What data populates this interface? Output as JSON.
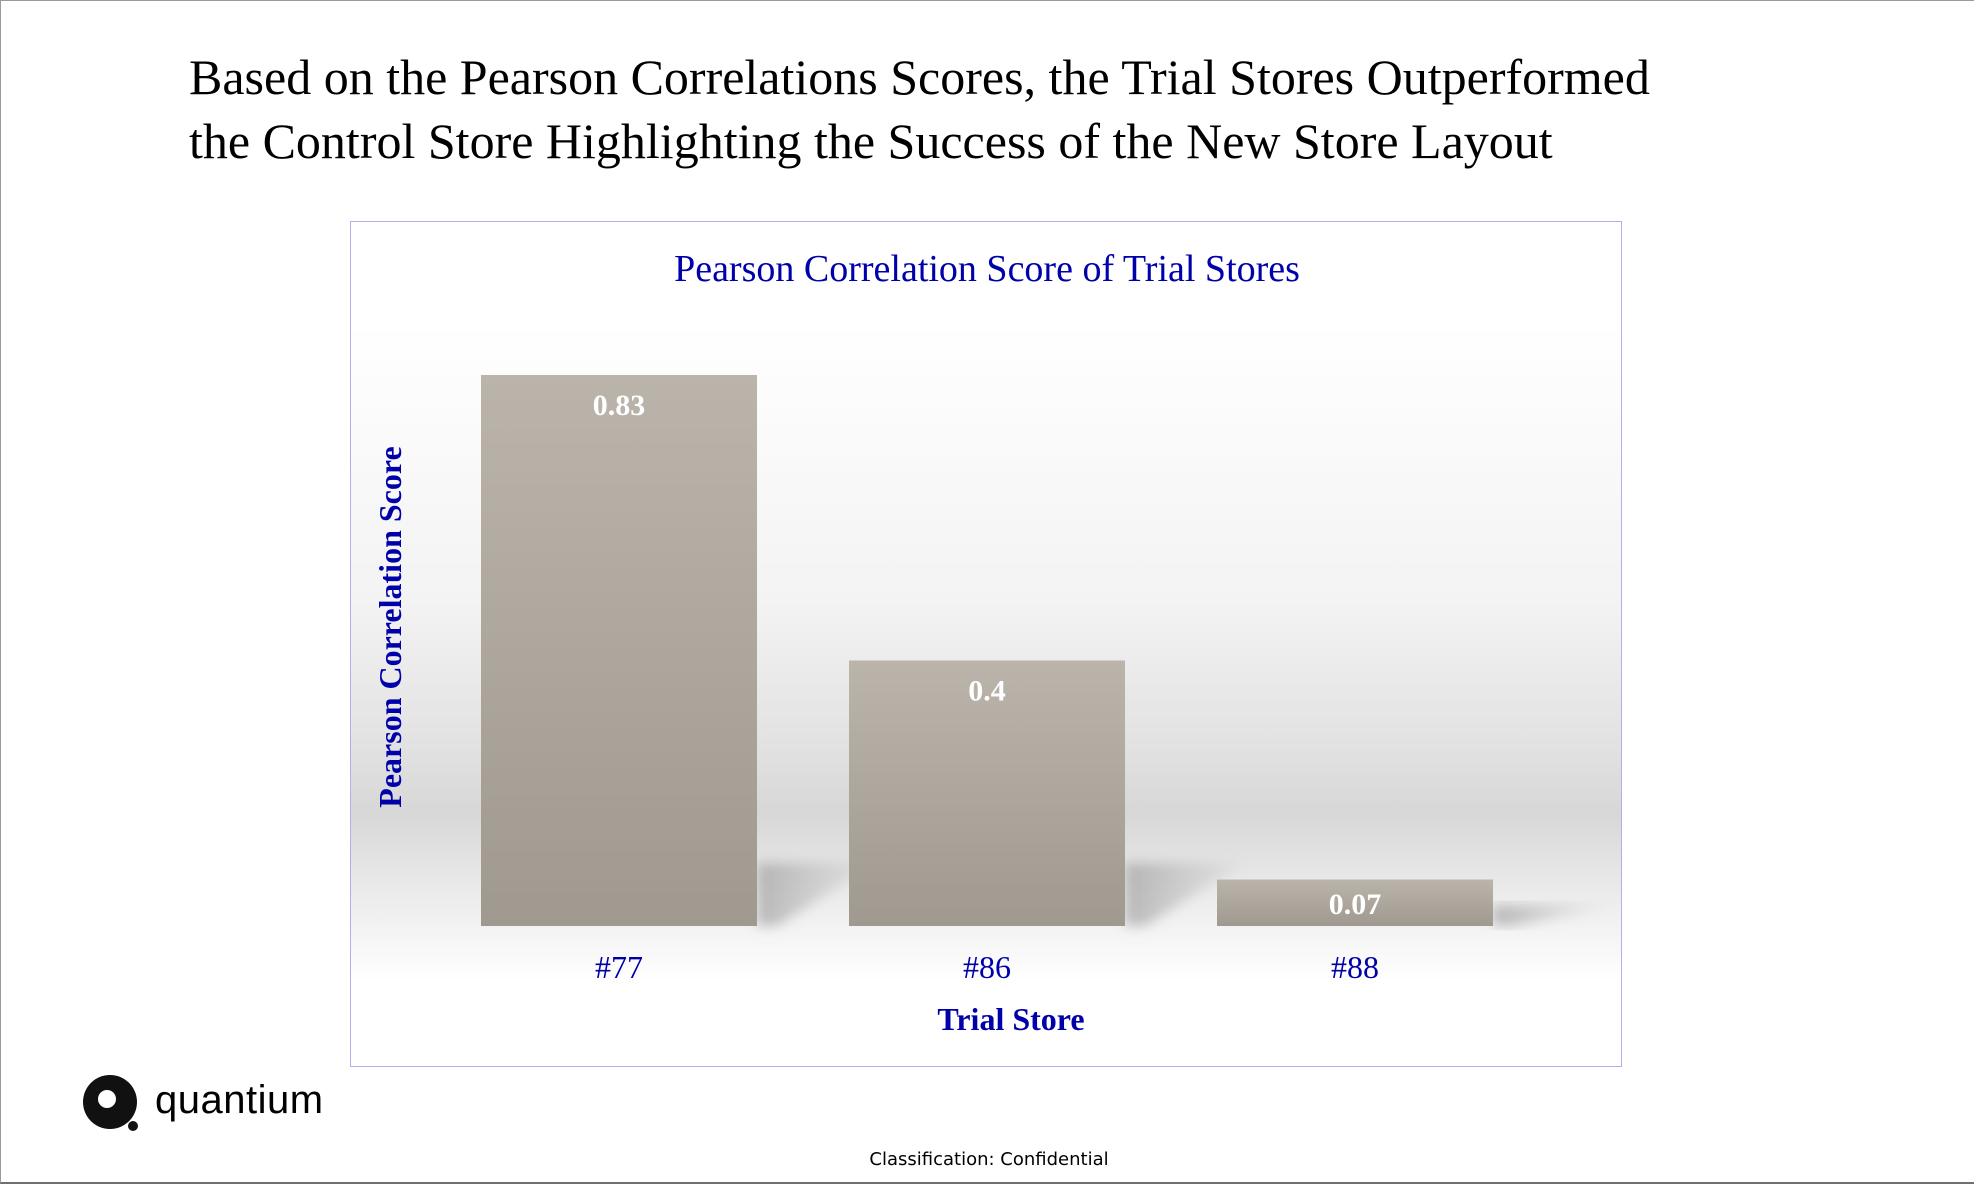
{
  "headline": {
    "line1": "Based on the Pearson Correlations Scores, the Trial Stores Outperformed",
    "line2": "the Control Store Highlighting the Success of the New Store Layout"
  },
  "chart_data": {
    "type": "bar",
    "title": "Pearson Correlation Score of Trial Stores",
    "xlabel": "Trial Store",
    "ylabel": "Pearson Correlation Score",
    "categories": [
      "#77",
      "#86",
      "#88"
    ],
    "values": [
      0.83,
      0.4,
      0.07
    ],
    "data_labels": [
      "0.83",
      "0.4",
      "0.07"
    ],
    "ylim": [
      0,
      0.83
    ],
    "grid": false,
    "legend": "none",
    "colors": {
      "bar_top": "#bbb4ab",
      "bar_bottom": "#a0998f",
      "title": "#0000aa",
      "axis_text": "#0000aa",
      "data_label": "#ffffff"
    }
  },
  "logo": {
    "text": "quantium"
  },
  "footer": {
    "classification": "Classification: Confidential"
  }
}
